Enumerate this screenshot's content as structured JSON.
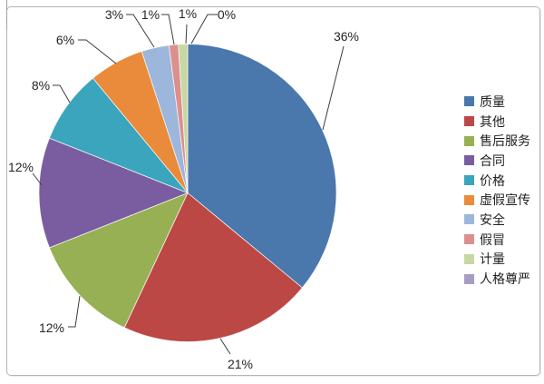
{
  "chart_data": {
    "type": "pie",
    "title": "",
    "legend_position": "right",
    "labels": [
      "质量",
      "其他",
      "售后服务",
      "合同",
      "价格",
      "虚假宣传",
      "安全",
      "假冒",
      "计量",
      "人格尊严"
    ],
    "values": [
      36,
      21,
      12,
      12,
      8,
      6,
      3,
      1,
      1,
      0
    ],
    "pct_labels": [
      "36%",
      "21%",
      "12%",
      "12%",
      "8%",
      "6%",
      "3%",
      "1%",
      "1%",
      "0%"
    ],
    "colors": [
      "#4A77AC",
      "#BC4845",
      "#97B054",
      "#7A5DA0",
      "#3AA5BC",
      "#E98B3A",
      "#9DB6DC",
      "#DC908E",
      "#C7D8A2",
      "#A89BC4"
    ],
    "leader_line_color": "#3c3c3c",
    "label_text_color": "#262626",
    "frame_border_color": "#b5b5b5"
  }
}
